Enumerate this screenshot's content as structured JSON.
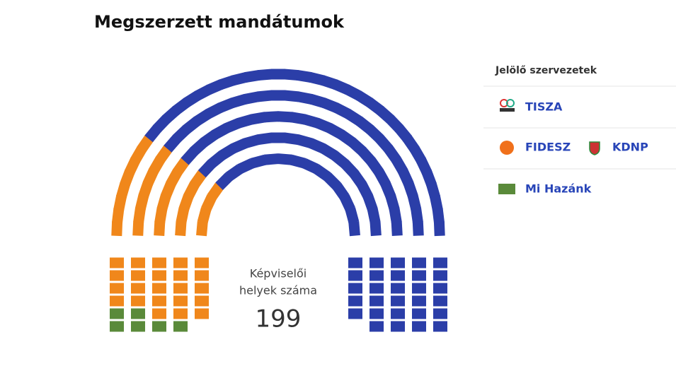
{
  "chart_data": {
    "type": "parliament",
    "title": "Megszerzett mandátumok",
    "center_label": [
      "Képviselői",
      "helyek száma"
    ],
    "total": 199,
    "legend_title": "Jelölő szervezetek",
    "series": [
      {
        "name": "Mi Hazánk",
        "color": "#5a8a3a",
        "values": [
          6
        ]
      },
      {
        "name": "FIDESZ",
        "partner": "KDNP",
        "color": "#f0871b",
        "values": [
          53
        ]
      },
      {
        "name": "TISZA",
        "color": "#2b3ea8",
        "values": [
          140
        ]
      }
    ]
  }
}
